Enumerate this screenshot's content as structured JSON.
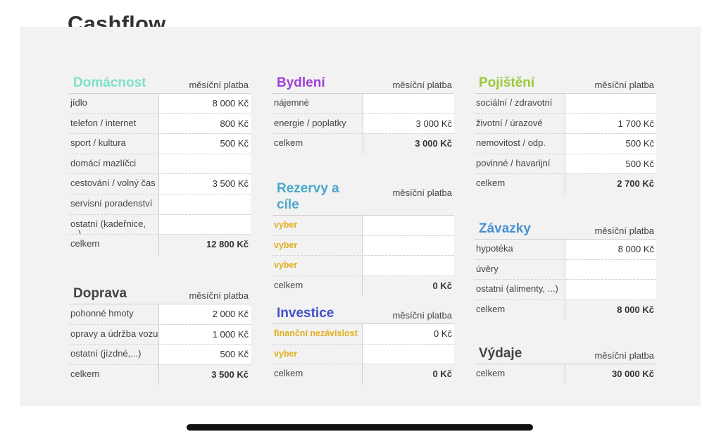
{
  "page": {
    "title": "Cashflow"
  },
  "colors": {
    "domacnost": "#7fe0cc",
    "bydleni": "#a040d8",
    "pojisteni": "#9cc83c",
    "rezervy": "#4aa8c8",
    "investice": "#4050c8",
    "zavazky": "#4a90d0",
    "doprava": "#444444",
    "vydaje": "#444444",
    "highlight": "#e0b020"
  },
  "blocks": {
    "domacnost": {
      "title": "Domácnost",
      "col": "měsíční platba",
      "rows": [
        {
          "label": "jídlo",
          "value": "8 000 Kč"
        },
        {
          "label": "telefon / internet",
          "value": "800 Kč"
        },
        {
          "label": "sport / kultura",
          "value": "500 Kč"
        },
        {
          "label": "domácí mazlíčci",
          "value": ""
        },
        {
          "label": "cestování / volný čas",
          "value": "3 500 Kč"
        },
        {
          "label": "servisní poradenství",
          "value": ""
        },
        {
          "label": "ostatní (kadeřnice, ...)",
          "value": ""
        }
      ],
      "total_label": "celkem",
      "total": "12 800 Kč"
    },
    "doprava": {
      "title": "Doprava",
      "col": "měsíční platba",
      "rows": [
        {
          "label": "pohonné hmoty",
          "value": "2 000 Kč"
        },
        {
          "label": "opravy a údržba vozu",
          "value": "1 000 Kč"
        },
        {
          "label": "ostatní (jízdné,...)",
          "value": "500 Kč"
        }
      ],
      "total_label": "celkem",
      "total": "3 500 Kč"
    },
    "bydleni": {
      "title": "Bydlení",
      "col": "měsíční platba",
      "rows": [
        {
          "label": "nájemné",
          "value": ""
        },
        {
          "label": "energie / poplatky",
          "value": "3 000 Kč"
        }
      ],
      "total_label": "celkem",
      "total": "3 000 Kč"
    },
    "rezervy": {
      "title": "Rezervy a cíle",
      "col": "měsíční platba",
      "rows": [
        {
          "label": "vyber",
          "value": ""
        },
        {
          "label": "vyber",
          "value": ""
        },
        {
          "label": "vyber",
          "value": ""
        }
      ],
      "total_label": "celkem",
      "total": "0 Kč"
    },
    "investice": {
      "title": "Investice",
      "col": "měsíční platba",
      "rows": [
        {
          "label": "finanční nezávislost",
          "value": "0 Kč"
        },
        {
          "label": "vyber",
          "value": ""
        }
      ],
      "total_label": "celkem",
      "total": "0 Kč"
    },
    "pojisteni": {
      "title": "Pojištění",
      "col": "měsíční platba",
      "rows": [
        {
          "label": "sociální / zdravotní",
          "value": ""
        },
        {
          "label": "životní / úrazové",
          "value": "1 700 Kč"
        },
        {
          "label": "nemovitost / odp.",
          "value": "500 Kč"
        },
        {
          "label": "povinné / havarijní",
          "value": "500 Kč"
        }
      ],
      "total_label": "celkem",
      "total": "2 700 Kč"
    },
    "zavazky": {
      "title": "Závazky",
      "col": "měsíční platba",
      "rows": [
        {
          "label": "hypotéka",
          "value": "8 000 Kč"
        },
        {
          "label": "úvěry",
          "value": ""
        },
        {
          "label": "ostatní (alimenty, ...)",
          "value": ""
        }
      ],
      "total_label": "celkem",
      "total": "8 000 Kč"
    },
    "vydaje": {
      "title": "Výdaje",
      "col": "měsíční platba",
      "total_label": "celkem",
      "total": "30 000 Kč"
    }
  }
}
